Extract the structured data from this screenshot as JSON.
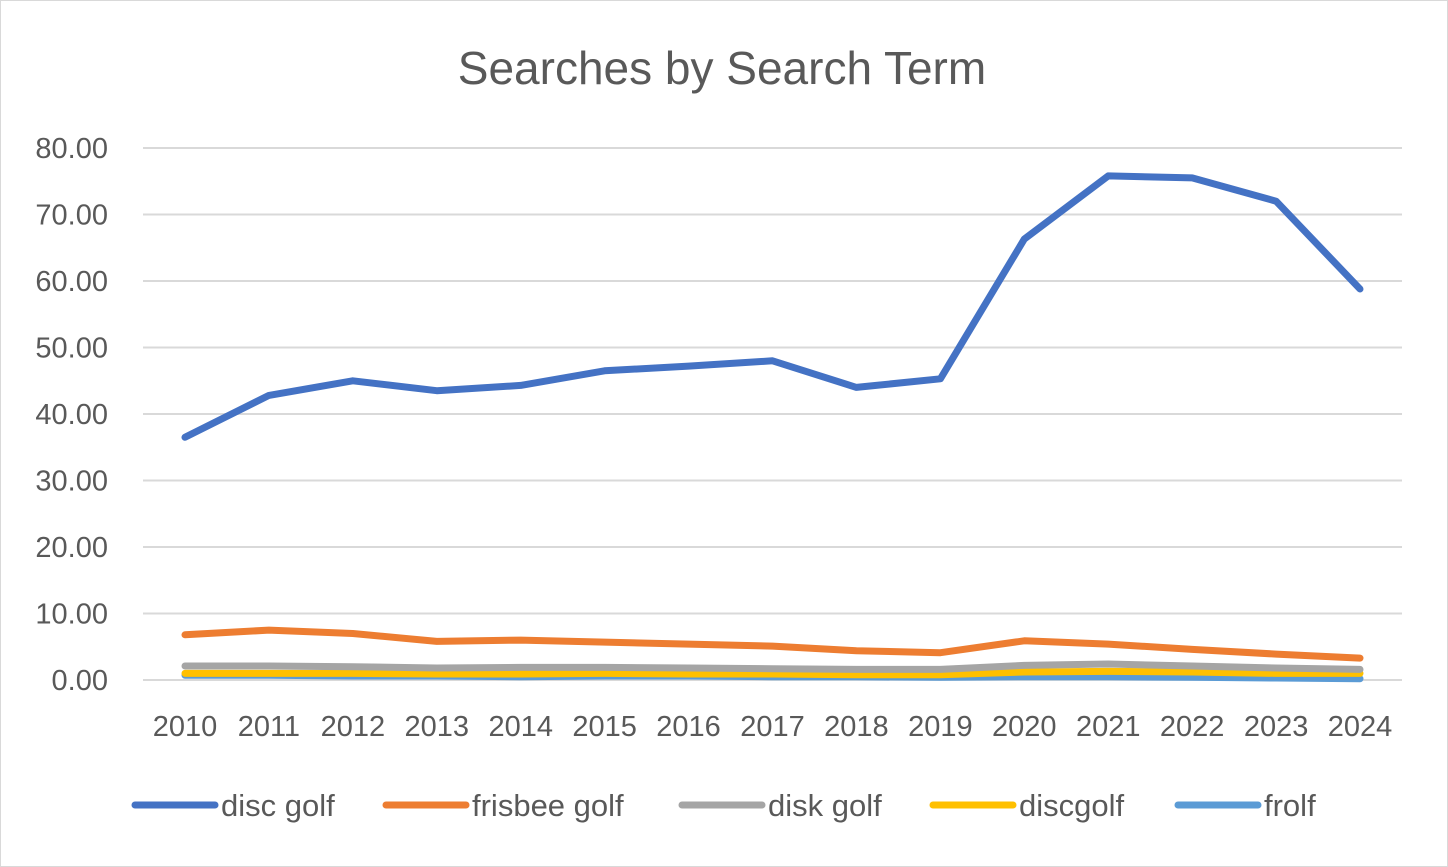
{
  "chart_data": {
    "type": "line",
    "title": "Searches by Search Term",
    "xlabel": "",
    "ylabel": "",
    "ylim": [
      0,
      80
    ],
    "y_ticks": [
      "0.00",
      "10.00",
      "20.00",
      "30.00",
      "40.00",
      "50.00",
      "60.00",
      "70.00",
      "80.00"
    ],
    "grid": true,
    "legend_position": "bottom",
    "categories": [
      "2010",
      "2011",
      "2012",
      "2013",
      "2014",
      "2015",
      "2016",
      "2017",
      "2018",
      "2019",
      "2020",
      "2021",
      "2022",
      "2023",
      "2024"
    ],
    "series": [
      {
        "name": "disc golf",
        "color": "#4472C4",
        "values": [
          36.5,
          42.8,
          45.0,
          43.5,
          44.3,
          46.5,
          47.2,
          48.0,
          44.0,
          45.3,
          66.3,
          75.8,
          75.5,
          72.0,
          58.8
        ]
      },
      {
        "name": "frisbee golf",
        "color": "#ED7D31",
        "values": [
          6.8,
          7.5,
          7.0,
          5.8,
          6.0,
          5.7,
          5.4,
          5.1,
          4.4,
          4.1,
          5.9,
          5.4,
          4.6,
          3.9,
          3.3
        ]
      },
      {
        "name": "disk golf",
        "color": "#A5A5A5",
        "values": [
          2.1,
          2.1,
          2.0,
          1.8,
          1.9,
          1.9,
          1.8,
          1.7,
          1.6,
          1.6,
          2.2,
          2.4,
          2.1,
          1.8,
          1.6
        ]
      },
      {
        "name": "discgolf",
        "color": "#FFC000",
        "values": [
          1.0,
          1.0,
          1.0,
          0.9,
          0.9,
          1.0,
          0.9,
          0.9,
          0.8,
          0.8,
          1.2,
          1.3,
          1.2,
          1.0,
          1.0
        ]
      },
      {
        "name": "frolf",
        "color": "#5B9BD5",
        "values": [
          0.7,
          0.7,
          0.6,
          0.6,
          0.5,
          0.6,
          0.6,
          0.5,
          0.5,
          0.4,
          0.5,
          0.5,
          0.4,
          0.3,
          0.2
        ]
      }
    ]
  }
}
